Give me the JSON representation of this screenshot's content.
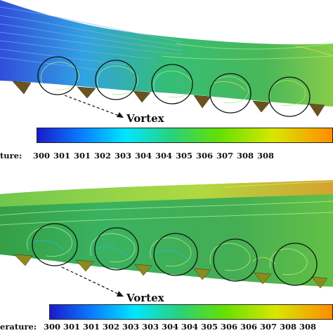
{
  "panels": [
    {
      "annotation": "Vortex",
      "colorbar_title": "ture:",
      "ticks": [
        "300",
        "301",
        "301",
        "302",
        "303",
        "304",
        "304",
        "305",
        "306",
        "307",
        "308",
        "308"
      ],
      "colors": [
        "#1a1acc",
        "#0a7dff",
        "#00e6ff",
        "#2ad17a",
        "#66e000",
        "#d9e600",
        "#ff8c00"
      ]
    },
    {
      "annotation": "Vortex",
      "colorbar_title": "erature:",
      "ticks": [
        "300",
        "301",
        "301",
        "302",
        "303",
        "303",
        "304",
        "304",
        "305",
        "306",
        "306",
        "307",
        "308",
        "308"
      ],
      "colors": [
        "#1a1acc",
        "#0a7dff",
        "#00e6ff",
        "#2ad17a",
        "#66e000",
        "#d9e600",
        "#ff8c00"
      ]
    }
  ]
}
